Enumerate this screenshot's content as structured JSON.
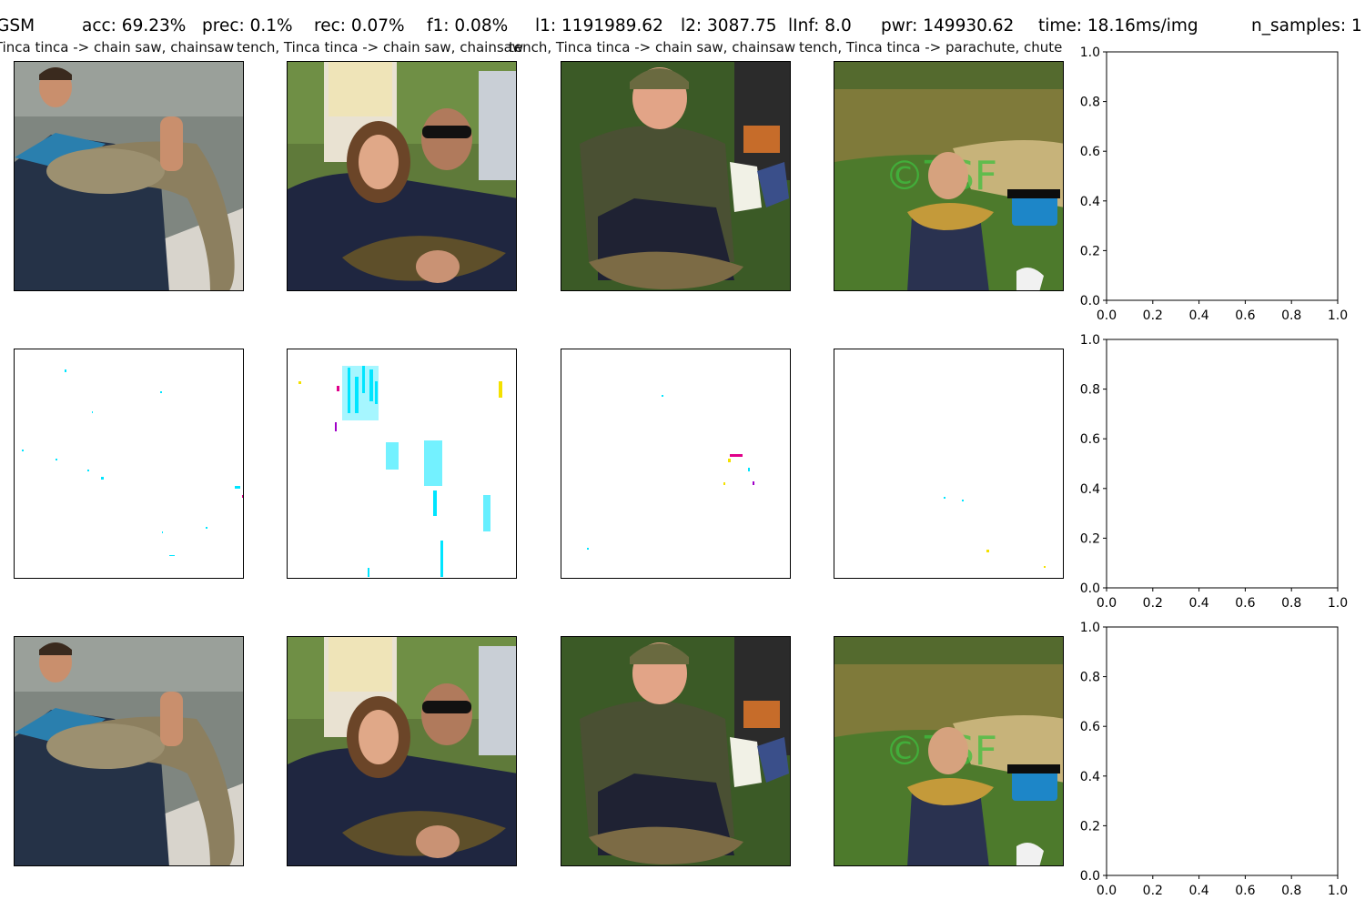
{
  "figure": {
    "suptitle_parts": [
      "GSM",
      "acc: 69.23%",
      "prec: 0.1%",
      "rec: 0.07%",
      "f1: 0.08%",
      "l1: 1191989.62",
      "l2: 3087.75",
      "lInf: 8.0",
      "pwr: 149930.62",
      "time: 18.16ms/img",
      "n_samples: 1"
    ],
    "column_titles": [
      "tench, Tinca tinca -> chain saw, chainsaw",
      "tench, Tinca tinca -> chain saw, chainsaw",
      "tench, Tinca tinca -> chain saw, chainsaw",
      "tench, Tinca tinca -> parachute, chute"
    ],
    "image_icons": [
      "man-holding-catfish-icon",
      "girl-and-man-holding-fish-icon",
      "man-kneeling-with-fish-icon",
      "boy-holding-carp-icon"
    ],
    "watermark": "©TSF",
    "colors": {
      "cyan": "#00e5ff",
      "magenta": "#e0008a",
      "yellow": "#f4e100",
      "water": "#8a8f86",
      "grass": "#4d7a2c",
      "pond": "#7f7a3a"
    }
  },
  "chart_data": [
    {
      "type": "scatter",
      "row": 1,
      "x": [],
      "y": [],
      "xlim": [
        0.0,
        1.0
      ],
      "ylim": [
        0.0,
        1.0
      ],
      "xticks": [
        "0.0",
        "0.2",
        "0.4",
        "0.6",
        "0.8",
        "1.0"
      ],
      "yticks": [
        "0.0",
        "0.2",
        "0.4",
        "0.6",
        "0.8",
        "1.0"
      ],
      "grid": false
    },
    {
      "type": "scatter",
      "row": 2,
      "x": [],
      "y": [],
      "xlim": [
        0.0,
        1.0
      ],
      "ylim": [
        0.0,
        1.0
      ],
      "xticks": [
        "0.0",
        "0.2",
        "0.4",
        "0.6",
        "0.8",
        "1.0"
      ],
      "yticks": [
        "0.0",
        "0.2",
        "0.4",
        "0.6",
        "0.8",
        "1.0"
      ],
      "grid": false
    },
    {
      "type": "scatter",
      "row": 3,
      "x": [],
      "y": [],
      "xlim": [
        0.0,
        1.0
      ],
      "ylim": [
        0.0,
        1.0
      ],
      "xticks": [
        "0.0",
        "0.2",
        "0.4",
        "0.6",
        "0.8",
        "1.0"
      ],
      "yticks": [
        "0.0",
        "0.2",
        "0.4",
        "0.6",
        "0.8",
        "1.0"
      ],
      "grid": false
    }
  ]
}
